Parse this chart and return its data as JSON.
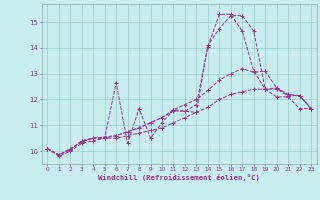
{
  "title": "",
  "xlabel": "Windchill (Refroidissement éolien,°C)",
  "ylabel": "",
  "bg_color": "#c8eef0",
  "grid_color": "#99cccc",
  "line_color": "#993399",
  "xlim": [
    -0.5,
    23.5
  ],
  "ylim": [
    9.5,
    15.7
  ],
  "xticks": [
    0,
    1,
    2,
    3,
    4,
    5,
    6,
    7,
    8,
    9,
    10,
    11,
    12,
    13,
    14,
    15,
    16,
    17,
    18,
    19,
    20,
    21,
    22,
    23
  ],
  "yticks": [
    10,
    11,
    12,
    13,
    14,
    15
  ],
  "series": [
    {
      "x": [
        0,
        1,
        2,
        3,
        4,
        5,
        6,
        7,
        8,
        9,
        10,
        11,
        12,
        13,
        14,
        15,
        16,
        17,
        18,
        19,
        20,
        21,
        22,
        23
      ],
      "y": [
        10.1,
        9.8,
        10.0,
        10.3,
        10.4,
        10.5,
        10.5,
        10.6,
        10.7,
        10.8,
        10.9,
        11.1,
        11.3,
        11.5,
        11.7,
        12.0,
        12.2,
        12.3,
        12.4,
        12.4,
        12.4,
        12.15,
        12.15,
        11.65
      ]
    },
    {
      "x": [
        0,
        1,
        2,
        3,
        4,
        5,
        6,
        7,
        8,
        9,
        10,
        11,
        12,
        13,
        14,
        15,
        16,
        17,
        18,
        19,
        20,
        21,
        22,
        23
      ],
      "y": [
        10.1,
        9.85,
        10.1,
        10.35,
        10.5,
        10.55,
        10.6,
        10.75,
        10.9,
        11.1,
        11.3,
        11.6,
        11.8,
        12.0,
        12.35,
        12.75,
        13.0,
        13.2,
        13.05,
        13.1,
        12.45,
        12.2,
        12.15,
        11.65
      ]
    },
    {
      "x": [
        0,
        1,
        2,
        3,
        4,
        5,
        6,
        7,
        8,
        9,
        10,
        11,
        12,
        13,
        14,
        15,
        16,
        17,
        18,
        19,
        20,
        21,
        22,
        23
      ],
      "y": [
        10.1,
        9.85,
        10.05,
        10.4,
        10.5,
        10.5,
        12.65,
        10.3,
        11.65,
        10.5,
        11.1,
        11.6,
        11.55,
        11.5,
        14.1,
        14.75,
        15.25,
        15.25,
        14.65,
        12.4,
        12.45,
        12.15,
        12.15,
        11.65
      ]
    },
    {
      "x": [
        0,
        1,
        2,
        3,
        4,
        5,
        6,
        7,
        8,
        9,
        10,
        11,
        12,
        13,
        14,
        15,
        16,
        17,
        18,
        19,
        20,
        21,
        22,
        23
      ],
      "y": [
        10.1,
        9.85,
        10.05,
        10.4,
        10.5,
        10.5,
        10.6,
        10.75,
        10.9,
        11.1,
        11.3,
        11.55,
        11.55,
        11.8,
        14.05,
        15.3,
        15.3,
        14.65,
        13.1,
        12.4,
        12.1,
        12.1,
        11.65,
        11.65
      ]
    }
  ]
}
